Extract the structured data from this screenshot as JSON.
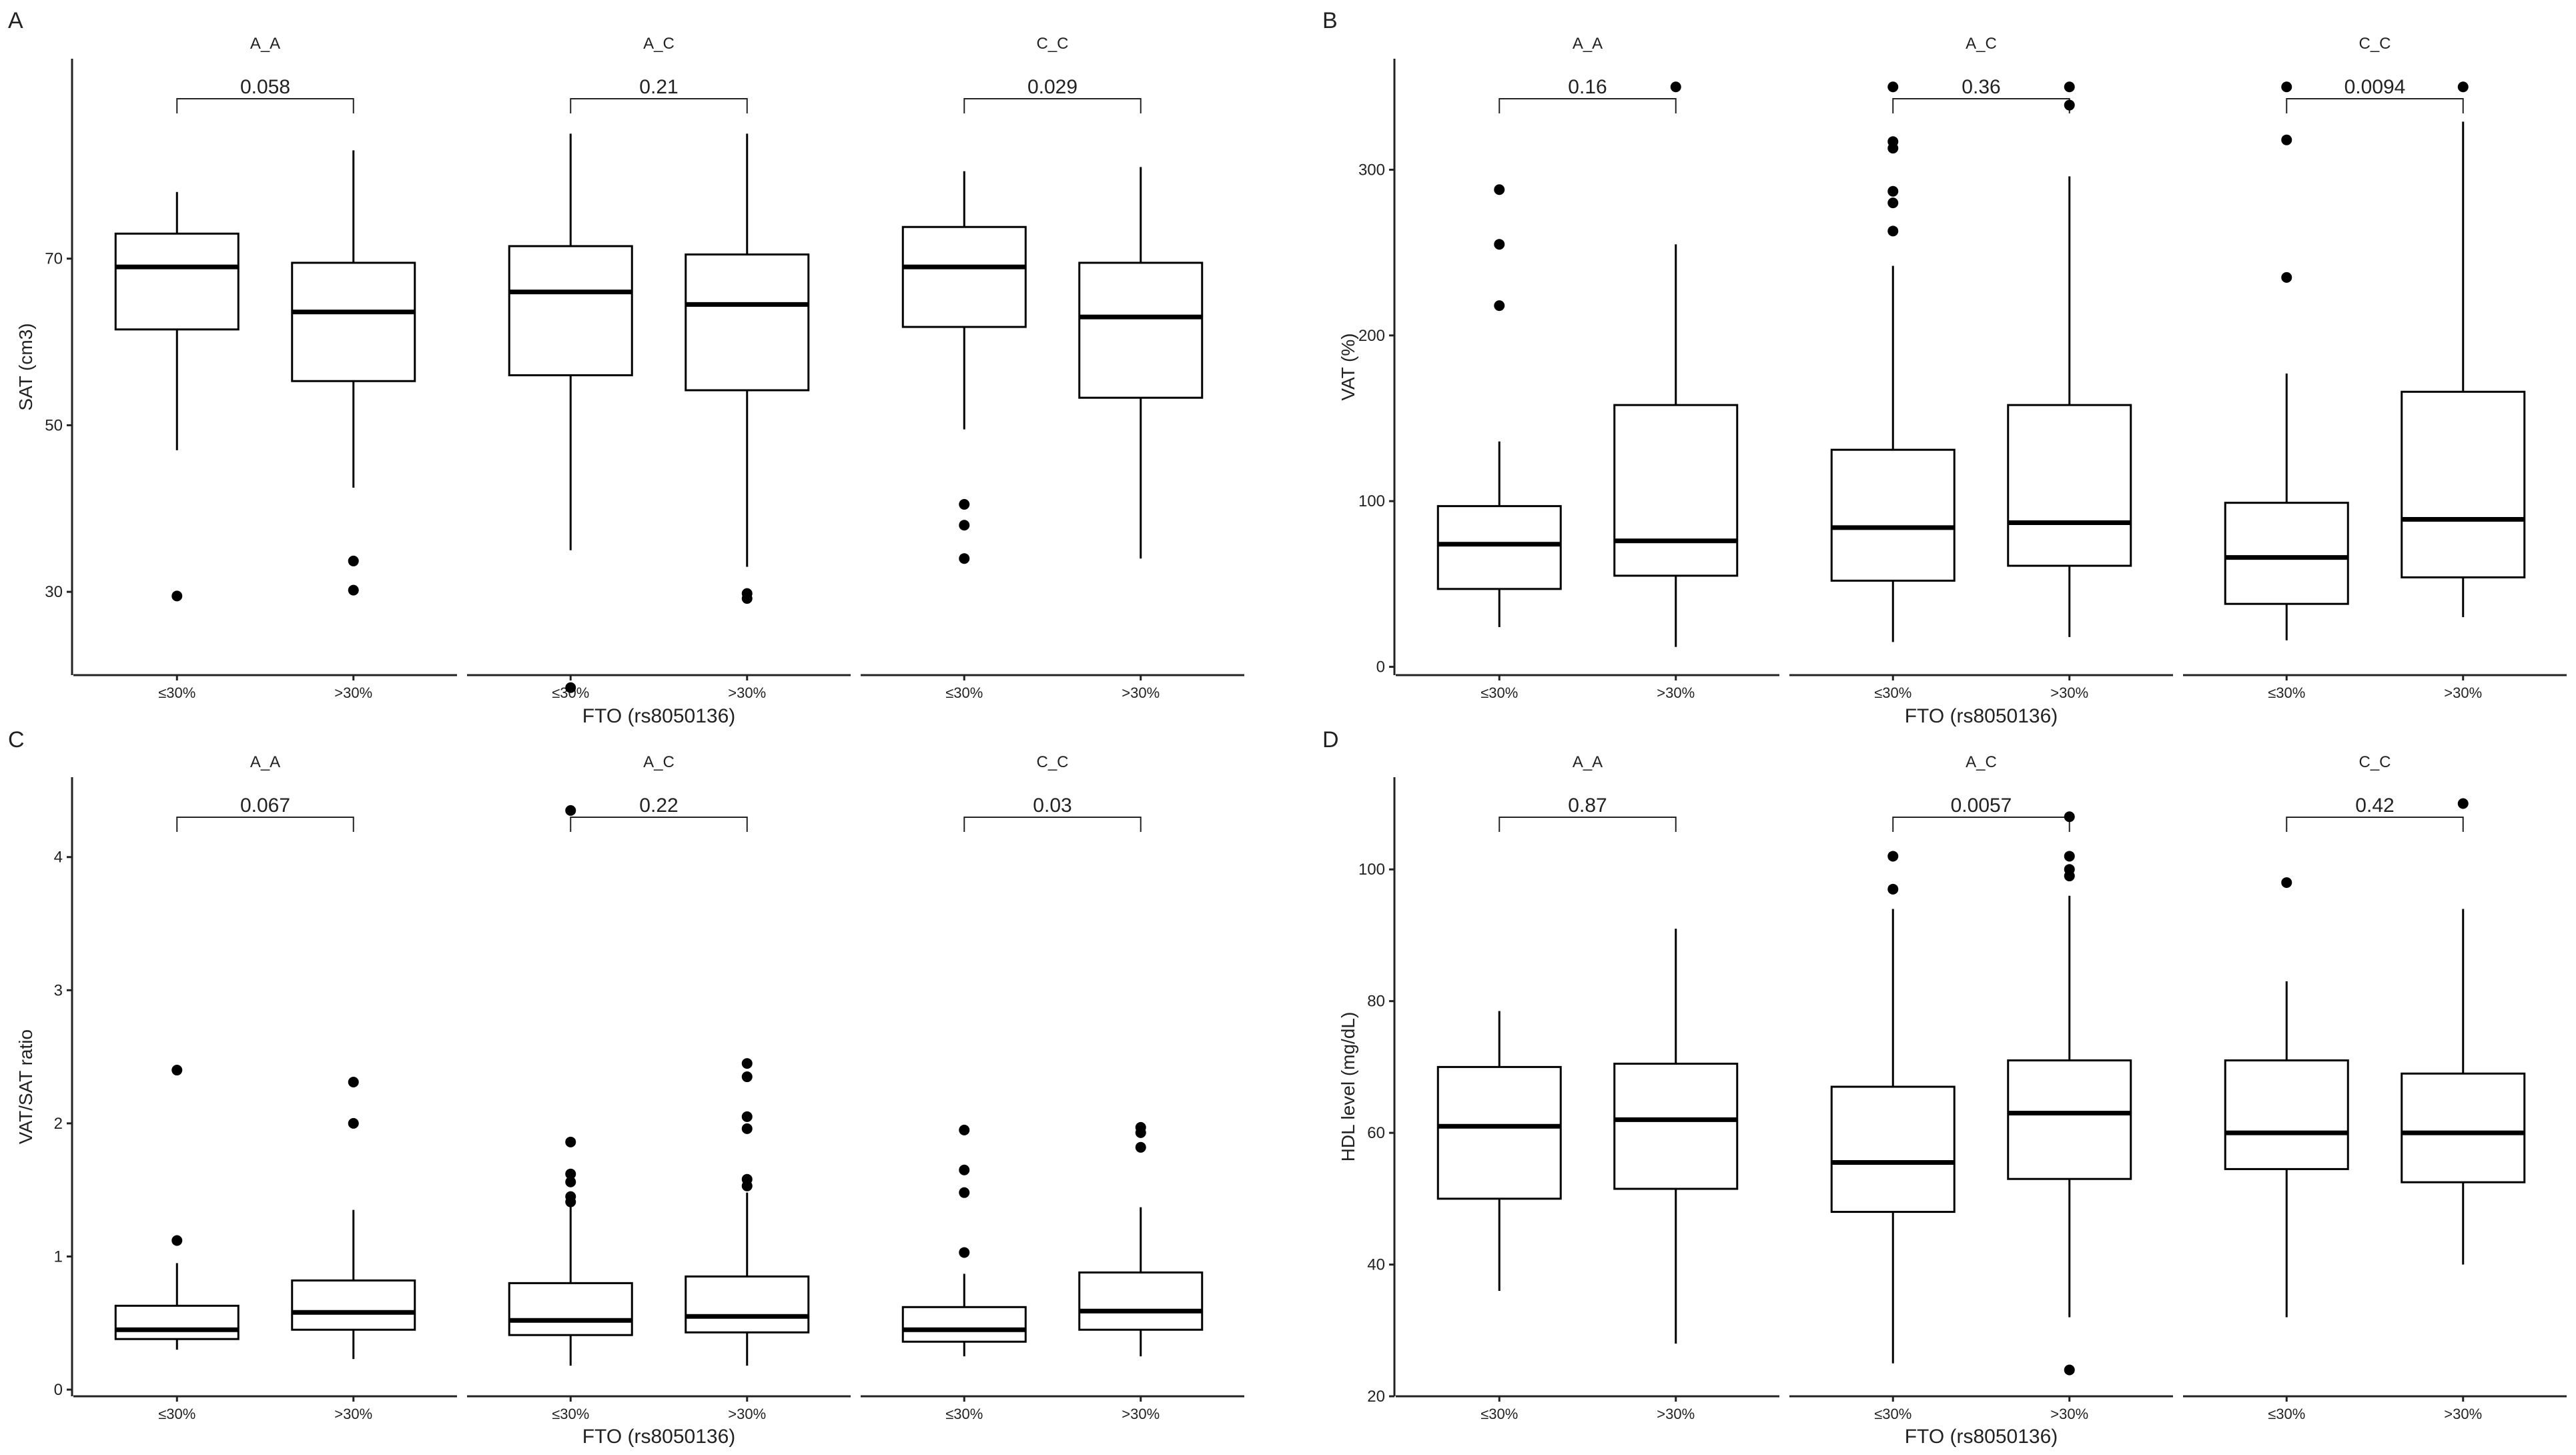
{
  "x_axis_title": "FTO (rs8050136)",
  "x_categories": [
    "≤30%",
    ">30%"
  ],
  "colors": {
    "box_stroke": "#000000",
    "axis": "#222222",
    "text": "#222222",
    "background": "#ffffff"
  },
  "chart_data": [
    {
      "panel_label": "A",
      "type": "boxplot",
      "ylabel": "SAT (cm3)",
      "ylim": [
        20,
        94
      ],
      "yticks": [
        30,
        50,
        70
      ],
      "xlabel": "FTO (rs8050136)",
      "facets": [
        {
          "strip": "A_A",
          "p_value": "0.058",
          "boxes": [
            {
              "category": "≤30%",
              "min": 47,
              "q1": 61.5,
              "median": 69,
              "q3": 73,
              "max": 78,
              "outliers": [
                29.5
              ]
            },
            {
              "category": ">30%",
              "min": 42.5,
              "q1": 55.3,
              "median": 63.6,
              "q3": 69.5,
              "max": 83,
              "outliers": [
                33.7,
                30.2
              ]
            }
          ]
        },
        {
          "strip": "A_C",
          "p_value": "0.21",
          "boxes": [
            {
              "category": "≤30%",
              "min": 35,
              "q1": 56,
              "median": 66,
              "q3": 71.5,
              "max": 85,
              "outliers": [
                18.5
              ]
            },
            {
              "category": ">30%",
              "min": 33,
              "q1": 54.2,
              "median": 64.5,
              "q3": 70.5,
              "max": 85,
              "outliers": [
                29.8,
                29.2
              ]
            }
          ]
        },
        {
          "strip": "C_C",
          "p_value": "0.029",
          "boxes": [
            {
              "category": "≤30%",
              "min": 49.5,
              "q1": 61.8,
              "median": 69,
              "q3": 73.8,
              "max": 80.5,
              "outliers": [
                40.5,
                38,
                34
              ]
            },
            {
              "category": ">30%",
              "min": 34,
              "q1": 53.3,
              "median": 63,
              "q3": 69.5,
              "max": 81,
              "outliers": []
            }
          ]
        }
      ]
    },
    {
      "panel_label": "B",
      "type": "boxplot",
      "ylabel": "VAT (%)",
      "ylim": [
        -5,
        367
      ],
      "yticks": [
        0,
        100,
        200,
        300
      ],
      "xlabel": "FTO (rs8050136)",
      "facets": [
        {
          "strip": "A_A",
          "p_value": "0.16",
          "boxes": [
            {
              "category": "≤30%",
              "min": 24,
              "q1": 47,
              "median": 74,
              "q3": 97,
              "max": 136,
              "outliers": [
                288,
                255,
                218
              ]
            },
            {
              "category": ">30%",
              "min": 12,
              "q1": 55,
              "median": 76,
              "q3": 158,
              "max": 255,
              "outliers": [
                350
              ]
            }
          ]
        },
        {
          "strip": "A_C",
          "p_value": "0.36",
          "boxes": [
            {
              "category": "≤30%",
              "min": 15,
              "q1": 52,
              "median": 84,
              "q3": 131,
              "max": 242,
              "outliers": [
                350,
                317,
                313,
                287,
                280,
                263
              ]
            },
            {
              "category": ">30%",
              "min": 18,
              "q1": 61,
              "median": 87,
              "q3": 158,
              "max": 296,
              "outliers": [
                350,
                339
              ]
            }
          ]
        },
        {
          "strip": "C_C",
          "p_value": "0.0094",
          "boxes": [
            {
              "category": "≤30%",
              "min": 16,
              "q1": 38,
              "median": 66,
              "q3": 99,
              "max": 177,
              "outliers": [
                350,
                318,
                235
              ]
            },
            {
              "category": ">30%",
              "min": 30,
              "q1": 54,
              "median": 89,
              "q3": 166,
              "max": 329,
              "outliers": [
                350
              ]
            }
          ]
        }
      ]
    },
    {
      "panel_label": "C",
      "type": "boxplot",
      "ylabel": "VAT/SAT ratio",
      "ylim": [
        -0.05,
        4.6
      ],
      "yticks": [
        0,
        1,
        2,
        3,
        4
      ],
      "xlabel": "FTO (rs8050136)",
      "facets": [
        {
          "strip": "A_A",
          "p_value": "0.067",
          "boxes": [
            {
              "category": "≤30%",
              "min": 0.3,
              "q1": 0.38,
              "median": 0.45,
              "q3": 0.63,
              "max": 0.95,
              "outliers": [
                2.4,
                1.12
              ]
            },
            {
              "category": ">30%",
              "min": 0.23,
              "q1": 0.45,
              "median": 0.58,
              "q3": 0.82,
              "max": 1.35,
              "outliers": [
                2.31,
                2.0
              ]
            }
          ]
        },
        {
          "strip": "A_C",
          "p_value": "0.22",
          "boxes": [
            {
              "category": "≤30%",
              "min": 0.18,
              "q1": 0.41,
              "median": 0.52,
              "q3": 0.8,
              "max": 1.38,
              "outliers": [
                4.35,
                1.86,
                1.62,
                1.56,
                1.45,
                1.41
              ]
            },
            {
              "category": ">30%",
              "min": 0.18,
              "q1": 0.43,
              "median": 0.55,
              "q3": 0.85,
              "max": 1.48,
              "outliers": [
                2.45,
                2.35,
                2.05,
                1.96,
                1.58,
                1.53
              ]
            }
          ]
        },
        {
          "strip": "C_C",
          "p_value": "0.03",
          "boxes": [
            {
              "category": "≤30%",
              "min": 0.25,
              "q1": 0.36,
              "median": 0.45,
              "q3": 0.62,
              "max": 0.87,
              "outliers": [
                1.95,
                1.65,
                1.48,
                1.03
              ]
            },
            {
              "category": ">30%",
              "min": 0.25,
              "q1": 0.45,
              "median": 0.59,
              "q3": 0.88,
              "max": 1.37,
              "outliers": [
                1.97,
                1.93,
                1.82
              ]
            }
          ]
        }
      ]
    },
    {
      "panel_label": "D",
      "type": "boxplot",
      "ylabel": "HDL level (mg/dL)",
      "ylim": [
        20,
        114
      ],
      "yticks": [
        20,
        40,
        60,
        80,
        100
      ],
      "xlabel": "FTO (rs8050136)",
      "facets": [
        {
          "strip": "A_A",
          "p_value": "0.87",
          "boxes": [
            {
              "category": "≤30%",
              "min": 36,
              "q1": 50,
              "median": 61,
              "q3": 70,
              "max": 78.5,
              "outliers": []
            },
            {
              "category": ">30%",
              "min": 28,
              "q1": 51.5,
              "median": 62,
              "q3": 70.5,
              "max": 91,
              "outliers": []
            }
          ]
        },
        {
          "strip": "A_C",
          "p_value": "0.0057",
          "boxes": [
            {
              "category": "≤30%",
              "min": 25,
              "q1": 48,
              "median": 55.5,
              "q3": 67,
              "max": 94,
              "outliers": [
                102,
                97
              ]
            },
            {
              "category": ">30%",
              "min": 32,
              "q1": 53,
              "median": 63,
              "q3": 71,
              "max": 96,
              "outliers": [
                108,
                102,
                100,
                99,
                24
              ]
            }
          ]
        },
        {
          "strip": "C_C",
          "p_value": "0.42",
          "boxes": [
            {
              "category": "≤30%",
              "min": 32,
              "q1": 54.5,
              "median": 60,
              "q3": 71,
              "max": 83,
              "outliers": [
                98
              ]
            },
            {
              "category": ">30%",
              "min": 40,
              "q1": 52.5,
              "median": 60,
              "q3": 69,
              "max": 94,
              "outliers": [
                110
              ]
            }
          ]
        }
      ]
    }
  ]
}
